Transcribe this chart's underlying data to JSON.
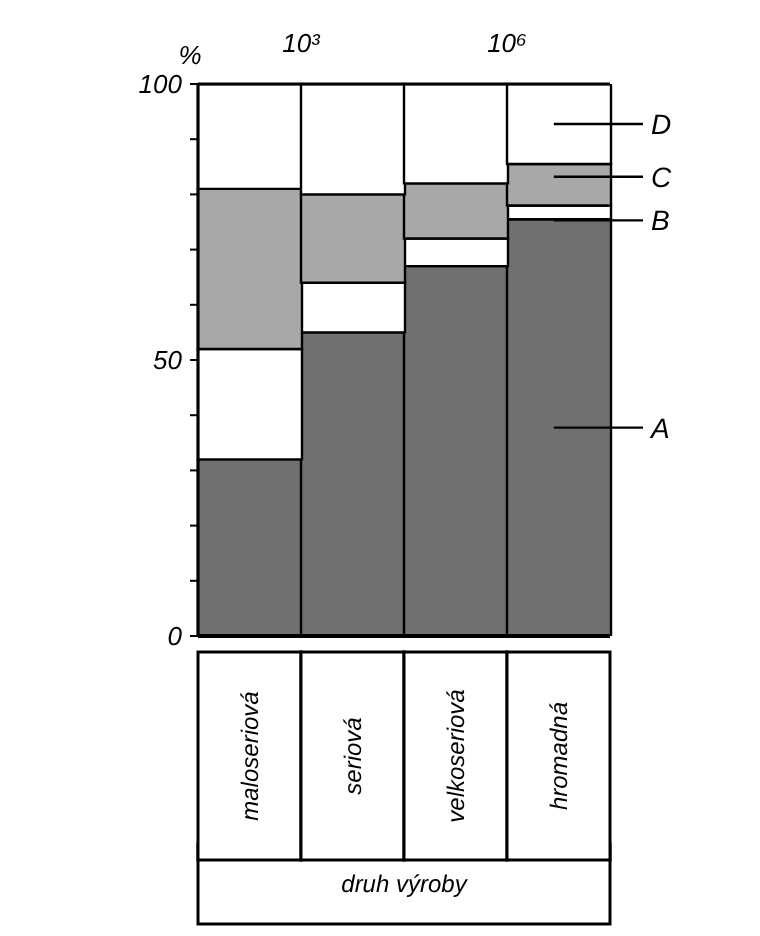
{
  "chart_data": {
    "type": "bar",
    "stacked": true,
    "ylabel": "%",
    "xlabel": "druh výroby",
    "categories": [
      "maloseriová",
      "seriová",
      "velkoseriová",
      "hromadná"
    ],
    "series": [
      {
        "name": "A",
        "color": "#707070",
        "values": [
          32,
          55,
          67,
          75.5
        ]
      },
      {
        "name": "B",
        "color": "#ffffff",
        "values": [
          20,
          9,
          5,
          2.5
        ]
      },
      {
        "name": "C",
        "color": "#a8a8a8",
        "values": [
          29,
          16,
          10,
          7.5
        ]
      },
      {
        "name": "D",
        "color": "#ffffff",
        "values": [
          19,
          20,
          18,
          14.5
        ]
      }
    ],
    "ylim": [
      0,
      100
    ],
    "yticks": [
      0,
      {
        "value": 10,
        "label": null
      },
      {
        "value": 20,
        "label": null
      },
      {
        "value": 30,
        "label": null
      },
      {
        "value": 40,
        "label": null
      },
      50,
      {
        "value": 60,
        "label": null
      },
      {
        "value": 70,
        "label": null
      },
      {
        "value": 80,
        "label": null
      },
      {
        "value": 90,
        "label": null
      },
      100
    ],
    "annotations": [
      "10³",
      "10⁶"
    ],
    "legend": "right"
  }
}
